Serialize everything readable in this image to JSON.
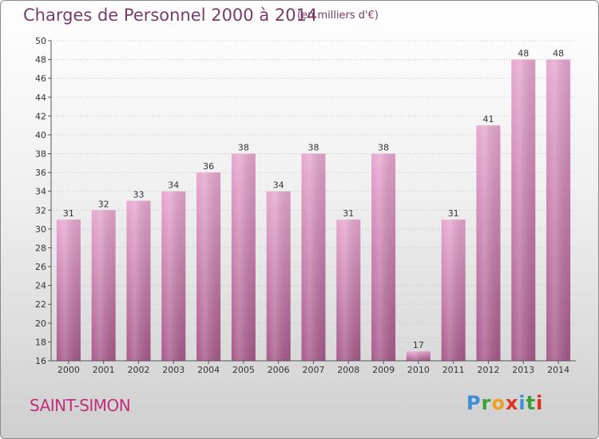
{
  "header": {
    "title": "Charges de Personnel 2000 à 2014",
    "subtitle": "(en milliers d'€)"
  },
  "footer": {
    "commune": "SAINT-SIMON",
    "logo_letters": [
      "P",
      "r",
      "o",
      "x",
      "i",
      "t",
      "i"
    ]
  },
  "colors": {
    "bar": "#cf7fb0",
    "title": "#7a3a6a",
    "commune": "#c0307a",
    "logo": [
      "#3a8fd6",
      "#3aa03a",
      "#f0a020",
      "#e03020",
      "#3a8fd6",
      "#3aa03a",
      "#e03020"
    ]
  },
  "chart_data": {
    "type": "bar",
    "title": "Charges de Personnel 2000 à 2014",
    "subtitle": "(en milliers d'€)",
    "categories": [
      "2000",
      "2001",
      "2002",
      "2003",
      "2004",
      "2005",
      "2006",
      "2007",
      "2008",
      "2009",
      "2010",
      "2011",
      "2012",
      "2013",
      "2014"
    ],
    "values": [
      31,
      32,
      33,
      34,
      36,
      38,
      34,
      38,
      31,
      38,
      17,
      31,
      41,
      48,
      48
    ],
    "ylim": [
      16,
      50
    ],
    "yticks": [
      16,
      18,
      20,
      22,
      24,
      26,
      28,
      30,
      32,
      34,
      36,
      38,
      40,
      42,
      44,
      46,
      48,
      50
    ],
    "grid": true
  }
}
